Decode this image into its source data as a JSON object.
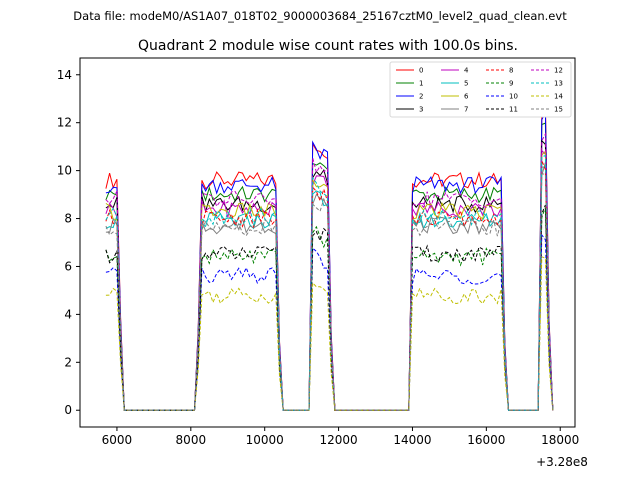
{
  "suptitle": "Data file: modeM0/AS1A07_018T02_9000003684_25167cztM0_level2_quad_clean.evt",
  "chart_data": {
    "type": "line",
    "title": "Quadrant 2 module wise count rates with 100.0s bins.",
    "xlabel": "",
    "ylabel": "",
    "x_offset_label": "+3.28e8",
    "xlim": [
      5000,
      18400
    ],
    "ylim": [
      -0.7,
      14.7
    ],
    "xticks": [
      6000,
      8000,
      10000,
      12000,
      14000,
      16000,
      18000
    ],
    "xtick_labels": [
      "6000",
      "8000",
      "10000",
      "12000",
      "14000",
      "16000",
      "18000"
    ],
    "yticks": [
      0,
      2,
      4,
      6,
      8,
      10,
      12,
      14
    ],
    "ytick_labels": [
      "0",
      "2",
      "4",
      "6",
      "8",
      "10",
      "12",
      "14"
    ],
    "grid": false,
    "legend_placement": "top-right",
    "legend_columns": 4,
    "segments": [
      {
        "start": 5700,
        "n": 5
      },
      {
        "start": 8200,
        "n": 23
      },
      {
        "start": 11300,
        "n": 6
      },
      {
        "start": 14000,
        "n": 26
      },
      {
        "start": 17500,
        "n": 3
      }
    ],
    "series": [
      {
        "name": "0",
        "color": "#ff0000",
        "dash": "solid",
        "level": 9.6
      },
      {
        "name": "1",
        "color": "#008000",
        "dash": "solid",
        "level": 9.0
      },
      {
        "name": "2",
        "color": "#0000ff",
        "dash": "solid",
        "level": 9.4
      },
      {
        "name": "3",
        "color": "#000000",
        "dash": "solid",
        "level": 8.6
      },
      {
        "name": "4",
        "color": "#bf00bf",
        "dash": "solid",
        "level": 8.4
      },
      {
        "name": "5",
        "color": "#00bfbf",
        "dash": "solid",
        "level": 7.9
      },
      {
        "name": "6",
        "color": "#bfbf00",
        "dash": "solid",
        "level": 8.3
      },
      {
        "name": "7",
        "color": "#808080",
        "dash": "solid",
        "level": 7.7
      },
      {
        "name": "8",
        "color": "#ff0000",
        "dash": "dashed",
        "level": 8.0
      },
      {
        "name": "9",
        "color": "#008000",
        "dash": "dashed",
        "level": 6.4
      },
      {
        "name": "10",
        "color": "#0000ff",
        "dash": "dashed",
        "level": 5.6
      },
      {
        "name": "11",
        "color": "#000000",
        "dash": "dashed",
        "level": 6.5
      },
      {
        "name": "12",
        "color": "#bf00bf",
        "dash": "dashed",
        "level": 8.8
      },
      {
        "name": "13",
        "color": "#00bfbf",
        "dash": "dashed",
        "level": 8.1
      },
      {
        "name": "14",
        "color": "#bfbf00",
        "dash": "dashed",
        "level": 4.8
      },
      {
        "name": "15",
        "color": "#808080",
        "dash": "dashed",
        "level": 7.6
      }
    ]
  }
}
